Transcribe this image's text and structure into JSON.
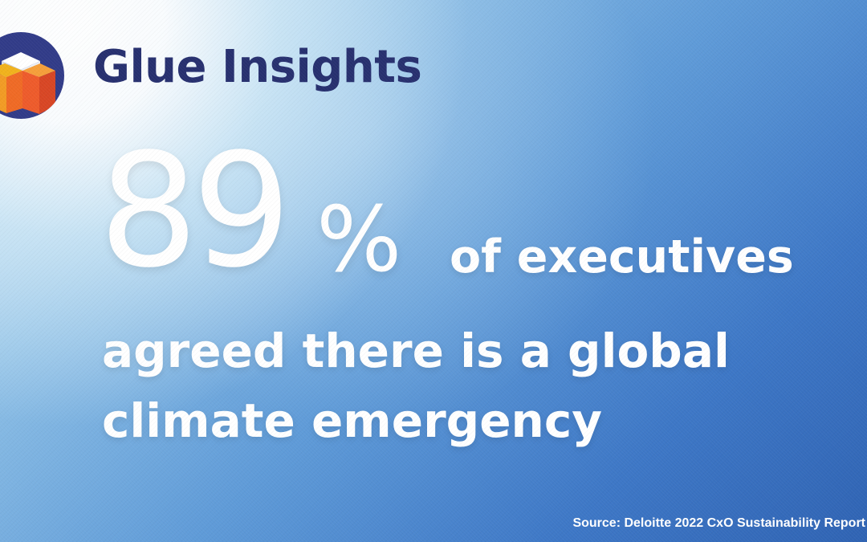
{
  "brand": {
    "name": "Glue Insights",
    "logo_icon": "cube-logo-icon",
    "text_color": "#27306f"
  },
  "stat": {
    "number": "89",
    "percent": "%",
    "label": "of executives"
  },
  "headline": {
    "lines": [
      "agreed there is a global",
      "climate emergency"
    ]
  },
  "source": {
    "text": "Source: Deloitte 2022 CxO Sustainability Report"
  },
  "colors": {
    "background_top_left": "#cfe6f5",
    "background_bottom_right": "#2f63b3",
    "text": "#ffffff"
  }
}
